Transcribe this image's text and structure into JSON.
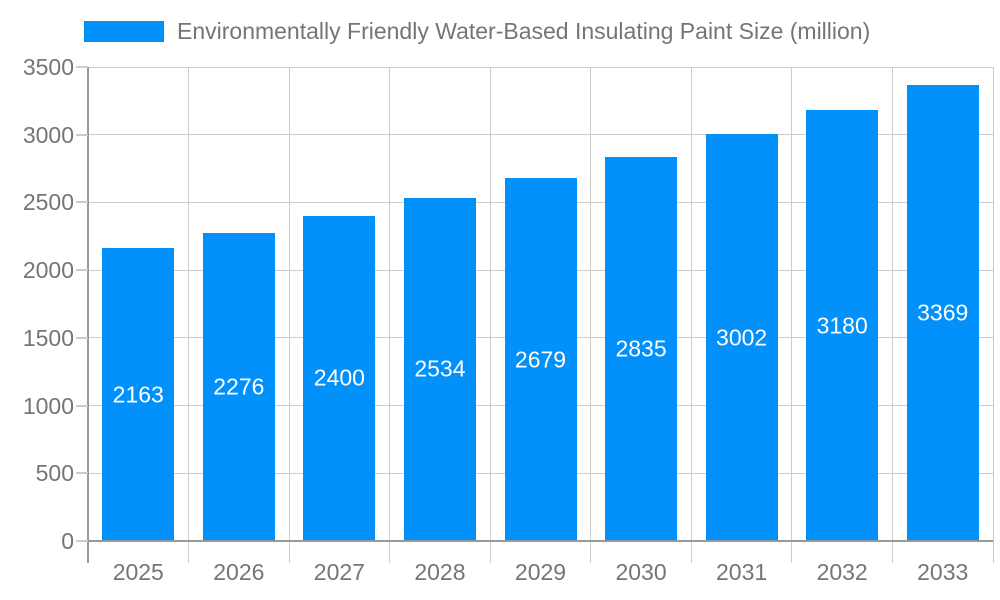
{
  "chart_data": {
    "type": "bar",
    "title": "Environmentally Friendly Water-Based Insulating Paint Size (million)",
    "series": [
      {
        "name": "Environmentally Friendly Water-Based Insulating Paint Size (million)",
        "values": [
          2163,
          2276,
          2400,
          2534,
          2679,
          2835,
          3002,
          3180,
          3369
        ]
      }
    ],
    "categories": [
      "2025",
      "2026",
      "2027",
      "2028",
      "2029",
      "2030",
      "2031",
      "2032",
      "2033"
    ],
    "xlabel": "",
    "ylabel": "",
    "ylim": [
      0,
      3500
    ],
    "ytick_step": 500,
    "ytick_labels": [
      "0",
      "500",
      "1000",
      "1500",
      "2000",
      "2500",
      "3000",
      "3500"
    ],
    "grid": "horizontal gridlines plus vertical category-boundary gridlines",
    "legend_position": "top-left",
    "bar_value_labels": "white, centered inside bars",
    "colors": {
      "bar": "#0290fa",
      "grid": "#cccccc",
      "axis": "#999999",
      "label": "#757575",
      "bar_label": "#ffffff",
      "background": "#ffffff"
    }
  }
}
